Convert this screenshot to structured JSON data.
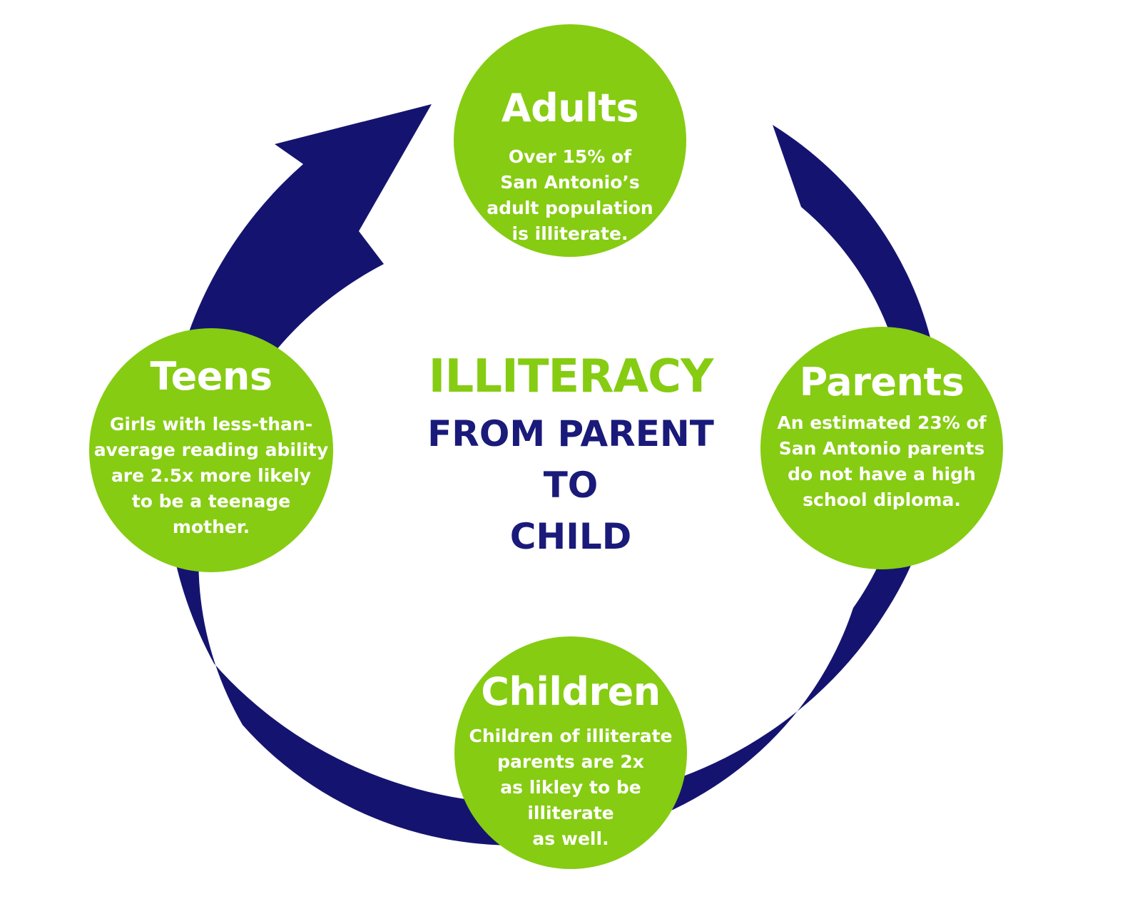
{
  "colors": {
    "circle_green": "#86cc12",
    "arrow_navy": "#141470",
    "subtitle_navy": "#1a1a7a",
    "white": "#ffffff"
  },
  "center": {
    "title": "ILLITERACY",
    "subtitle_lines": [
      "FROM PARENT",
      "TO",
      "CHILD"
    ]
  },
  "stages": {
    "adults": {
      "title": "Adults",
      "lines": [
        "Over 15% of",
        "San Antonio’s",
        "adult population",
        "is illiterate."
      ]
    },
    "parents": {
      "title": "Parents",
      "lines": [
        "An estimated 23% of",
        "San Antonio parents",
        "do not have a high",
        "school diploma."
      ]
    },
    "children": {
      "title": "Children",
      "lines": [
        "Children of illiterate",
        "parents are 2x",
        "as likley to be",
        "illiterate",
        "as well."
      ]
    },
    "teens": {
      "title": "Teens",
      "lines": [
        "Girls with less-than-",
        "average reading ability",
        "are 2.5x more likely",
        "to be a teenage",
        "mother."
      ]
    }
  },
  "cycle_order": [
    "adults",
    "parents",
    "children",
    "teens"
  ],
  "arrow_icon": "clockwise-cycle-arrow-icon"
}
